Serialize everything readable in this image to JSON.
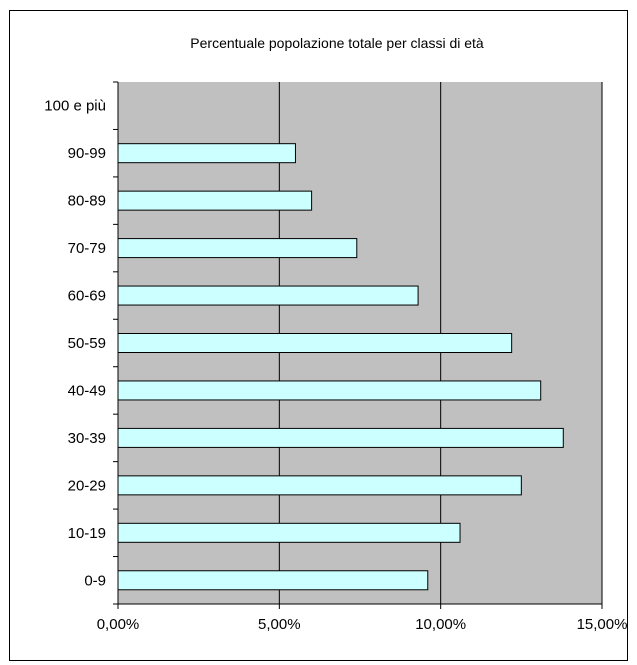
{
  "chart_data": {
    "type": "bar",
    "orientation": "horizontal",
    "title": "Percentuale popolazione totale per classi di età",
    "xlabel": "",
    "ylabel": "",
    "categories": [
      "0-9",
      "10-19",
      "20-29",
      "30-39",
      "40-49",
      "50-59",
      "60-69",
      "70-79",
      "80-89",
      "90-99",
      "100 e più"
    ],
    "values": [
      9.6,
      10.6,
      12.5,
      13.8,
      13.1,
      12.2,
      9.3,
      7.4,
      6.0,
      5.5,
      0.0
    ],
    "xlim": [
      0,
      15
    ],
    "xticks": [
      0,
      5,
      10,
      15
    ],
    "xtick_labels": [
      "0,00%",
      "5,00%",
      "10,00%",
      "15,00%"
    ],
    "grid": "vertical",
    "plot_background": "#c0c0c0",
    "bar_color": "#ccffff",
    "bar_edge_color": "#000000",
    "legend": "none"
  }
}
